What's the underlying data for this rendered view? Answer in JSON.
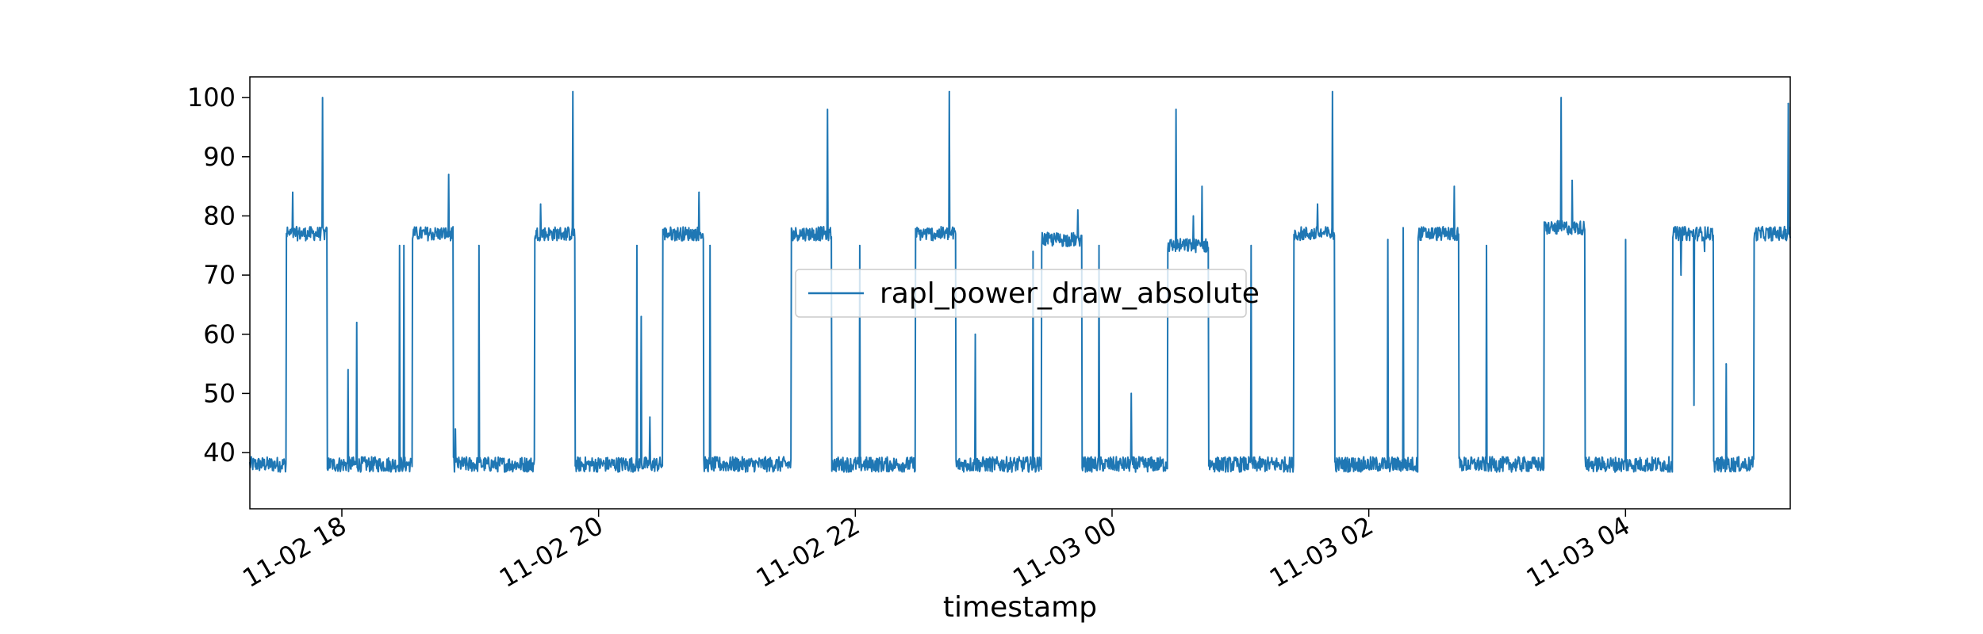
{
  "chart_data": {
    "type": "line",
    "title": "",
    "xlabel": "timestamp",
    "ylabel": "",
    "x_start": "2024-11-02 17:17",
    "x_end": "2024-11-03 05:17",
    "xlim": [
      "2024-11-02 17:17",
      "2024-11-03 05:17"
    ],
    "ylim": [
      30.5,
      103.5
    ],
    "yticks": [
      40,
      50,
      60,
      70,
      80,
      90,
      100
    ],
    "xticks": [
      {
        "x": "2024-11-02 18:00",
        "label": "11-02 18"
      },
      {
        "x": "2024-11-02 20:00",
        "label": "11-02 20"
      },
      {
        "x": "2024-11-02 22:00",
        "label": "11-02 22"
      },
      {
        "x": "2024-11-03 00:00",
        "label": "11-03 00"
      },
      {
        "x": "2024-11-03 02:00",
        "label": "11-03 02"
      },
      {
        "x": "2024-11-03 04:00",
        "label": "11-03 04"
      }
    ],
    "grid": false,
    "legend_position": "center",
    "series": [
      {
        "name": "rapl_power_draw_absolute",
        "color": "#1f77b4",
        "baseline_low": 38,
        "high_segments": [
          {
            "start": "2024-11-02 17:34",
            "end": "2024-11-02 17:53",
            "level": 77
          },
          {
            "start": "2024-11-02 18:33",
            "end": "2024-11-02 18:52",
            "level": 77
          },
          {
            "start": "2024-11-02 19:30",
            "end": "2024-11-02 19:49",
            "level": 77
          },
          {
            "start": "2024-11-02 20:30",
            "end": "2024-11-02 20:49",
            "level": 77
          },
          {
            "start": "2024-11-02 21:30",
            "end": "2024-11-02 21:49",
            "level": 77
          },
          {
            "start": "2024-11-02 22:28",
            "end": "2024-11-02 22:47",
            "level": 77
          },
          {
            "start": "2024-11-02 23:27",
            "end": "2024-11-02 23:46",
            "level": 76
          },
          {
            "start": "2024-11-03 00:26",
            "end": "2024-11-03 00:45",
            "level": 75
          },
          {
            "start": "2024-11-03 01:25",
            "end": "2024-11-03 01:44",
            "level": 77
          },
          {
            "start": "2024-11-03 02:23",
            "end": "2024-11-03 02:42",
            "level": 77
          },
          {
            "start": "2024-11-03 03:22",
            "end": "2024-11-03 03:41",
            "level": 78
          },
          {
            "start": "2024-11-03 04:22",
            "end": "2024-11-03 04:41",
            "level": 77
          },
          {
            "start": "2024-11-03 05:00",
            "end": "2024-11-03 05:17",
            "level": 77
          }
        ],
        "peaks": [
          {
            "x": "2024-11-02 17:51",
            "y": 100
          },
          {
            "x": "2024-11-02 18:50",
            "y": 87
          },
          {
            "x": "2024-11-02 19:48",
            "y": 101
          },
          {
            "x": "2024-11-02 20:47",
            "y": 84
          },
          {
            "x": "2024-11-02 21:47",
            "y": 98
          },
          {
            "x": "2024-11-02 22:44",
            "y": 101
          },
          {
            "x": "2024-11-02 23:44",
            "y": 81
          },
          {
            "x": "2024-11-03 00:30",
            "y": 98
          },
          {
            "x": "2024-11-03 01:43",
            "y": 101
          },
          {
            "x": "2024-11-03 02:40",
            "y": 85
          },
          {
            "x": "2024-11-03 03:30",
            "y": 100
          },
          {
            "x": "2024-11-03 03:35",
            "y": 86
          },
          {
            "x": "2024-11-03 05:16",
            "y": 99
          }
        ],
        "spikes": [
          {
            "x": "2024-11-02 17:37",
            "y": 84
          },
          {
            "x": "2024-11-02 18:03",
            "y": 54
          },
          {
            "x": "2024-11-02 18:07",
            "y": 62
          },
          {
            "x": "2024-11-02 18:27",
            "y": 75
          },
          {
            "x": "2024-11-02 18:29",
            "y": 75
          },
          {
            "x": "2024-11-02 18:53",
            "y": 44
          },
          {
            "x": "2024-11-02 19:04",
            "y": 75
          },
          {
            "x": "2024-11-02 19:33",
            "y": 82
          },
          {
            "x": "2024-11-02 20:18",
            "y": 75
          },
          {
            "x": "2024-11-02 20:20",
            "y": 63
          },
          {
            "x": "2024-11-02 20:24",
            "y": 46
          },
          {
            "x": "2024-11-02 20:52",
            "y": 75
          },
          {
            "x": "2024-11-02 22:02",
            "y": 75
          },
          {
            "x": "2024-11-02 22:56",
            "y": 60
          },
          {
            "x": "2024-11-02 23:23",
            "y": 74
          },
          {
            "x": "2024-11-02 23:54",
            "y": 75
          },
          {
            "x": "2024-11-03 00:09",
            "y": 50
          },
          {
            "x": "2024-11-03 00:38",
            "y": 80
          },
          {
            "x": "2024-11-03 00:42",
            "y": 85
          },
          {
            "x": "2024-11-03 01:05",
            "y": 75
          },
          {
            "x": "2024-11-03 01:36",
            "y": 82
          },
          {
            "x": "2024-11-03 02:09",
            "y": 76
          },
          {
            "x": "2024-11-03 02:16",
            "y": 78
          },
          {
            "x": "2024-11-03 02:55",
            "y": 75
          },
          {
            "x": "2024-11-03 04:00",
            "y": 76
          },
          {
            "x": "2024-11-03 04:26",
            "y": 70
          },
          {
            "x": "2024-11-03 04:32",
            "y": 48
          },
          {
            "x": "2024-11-03 04:37",
            "y": 74
          },
          {
            "x": "2024-11-03 04:47",
            "y": 55
          }
        ]
      }
    ]
  }
}
